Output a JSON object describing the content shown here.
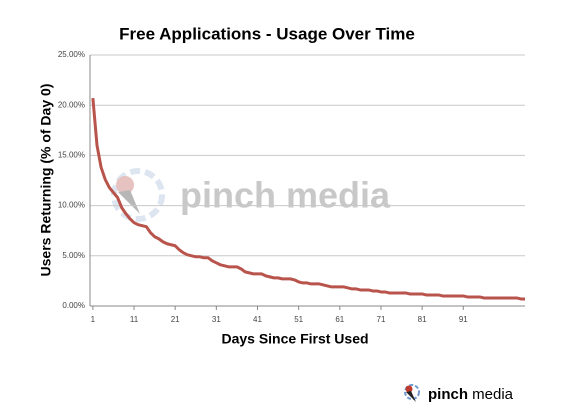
{
  "chart_data": {
    "type": "line",
    "title": "Free Applications - Usage Over Time",
    "xlabel": "Days Since First Used",
    "ylabel": "Users Returning (% of Day 0)",
    "watermark": "pinch media",
    "logo": [
      "pinch",
      "media"
    ],
    "color": "#b9544c",
    "x": [
      1,
      2,
      3,
      4,
      5,
      6,
      7,
      8,
      9,
      10,
      11,
      12,
      13,
      14,
      15,
      16,
      17,
      18,
      19,
      20,
      21,
      22,
      23,
      24,
      25,
      26,
      27,
      28,
      29,
      30,
      31,
      32,
      33,
      34,
      35,
      36,
      37,
      38,
      39,
      40,
      41,
      42,
      43,
      44,
      45,
      46,
      47,
      48,
      49,
      50,
      51,
      52,
      53,
      54,
      55,
      56,
      57,
      58,
      59,
      60,
      61,
      62,
      63,
      64,
      65,
      66,
      67,
      68,
      69,
      70,
      71,
      72,
      73,
      74,
      75,
      76,
      77,
      78,
      79,
      80,
      81,
      82,
      83,
      84,
      85,
      86,
      87,
      88,
      89,
      90,
      91,
      92,
      93,
      94,
      95,
      96,
      97,
      98,
      99,
      100,
      101,
      102,
      103,
      104,
      105,
      106
    ],
    "values": [
      20.7,
      16,
      13.8,
      12.6,
      11.8,
      11.3,
      10.8,
      9.8,
      9.2,
      8.7,
      8.3,
      8.1,
      8.0,
      7.9,
      7.3,
      6.9,
      6.7,
      6.4,
      6.2,
      6.1,
      6.0,
      5.6,
      5.3,
      5.1,
      5.0,
      4.9,
      4.9,
      4.8,
      4.8,
      4.5,
      4.3,
      4.1,
      4.0,
      3.9,
      3.9,
      3.9,
      3.7,
      3.4,
      3.3,
      3.2,
      3.2,
      3.2,
      3.0,
      2.9,
      2.8,
      2.8,
      2.7,
      2.7,
      2.7,
      2.6,
      2.4,
      2.3,
      2.3,
      2.2,
      2.2,
      2.2,
      2.1,
      2.0,
      1.9,
      1.9,
      1.9,
      1.9,
      1.8,
      1.7,
      1.7,
      1.6,
      1.6,
      1.6,
      1.5,
      1.5,
      1.4,
      1.4,
      1.3,
      1.3,
      1.3,
      1.3,
      1.3,
      1.2,
      1.2,
      1.2,
      1.2,
      1.1,
      1.1,
      1.1,
      1.1,
      1.0,
      1.0,
      1.0,
      1.0,
      1.0,
      1.0,
      0.9,
      0.9,
      0.9,
      0.9,
      0.8,
      0.8,
      0.8,
      0.8,
      0.8,
      0.8,
      0.8,
      0.8,
      0.8,
      0.7,
      0.7
    ],
    "xlim": [
      0.3,
      106
    ],
    "xticks": [
      1,
      11,
      21,
      31,
      41,
      51,
      61,
      71,
      81,
      91
    ],
    "ylim": [
      0,
      25
    ],
    "yticks": [
      {
        "value": 0,
        "label": "0.00%"
      },
      {
        "value": 5,
        "label": "5.00%"
      },
      {
        "value": 10,
        "label": "10.00%"
      },
      {
        "value": 15,
        "label": "15.00%"
      },
      {
        "value": 20,
        "label": "20.00%"
      },
      {
        "value": 25,
        "label": "25.00%"
      }
    ],
    "grid": true
  }
}
